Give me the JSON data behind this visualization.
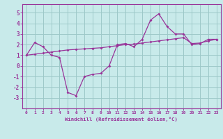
{
  "xlabel": "Windchill (Refroidissement éolien,°C)",
  "bg_color": "#c8eaea",
  "grid_color": "#9dc8c8",
  "line_color": "#993399",
  "xlim": [
    -0.5,
    23.5
  ],
  "ylim": [
    -4,
    5.8
  ],
  "yticks": [
    -3,
    -2,
    -1,
    0,
    1,
    2,
    3,
    4,
    5
  ],
  "xticks": [
    0,
    1,
    2,
    3,
    4,
    5,
    6,
    7,
    8,
    9,
    10,
    11,
    12,
    13,
    14,
    15,
    16,
    17,
    18,
    19,
    20,
    21,
    22,
    23
  ],
  "series1_x": [
    0,
    1,
    2,
    3,
    4,
    5,
    6,
    7,
    8,
    9,
    10,
    11,
    12,
    13,
    14,
    15,
    16,
    17,
    18,
    19,
    20,
    21,
    22,
    23
  ],
  "series1_y": [
    1.0,
    2.2,
    1.8,
    1.0,
    0.8,
    -2.5,
    -2.8,
    -1.0,
    -0.8,
    -0.7,
    0.0,
    2.0,
    2.1,
    1.8,
    2.5,
    4.3,
    4.9,
    3.7,
    3.0,
    3.0,
    2.0,
    2.1,
    2.5,
    2.5
  ],
  "series2_x": [
    0,
    1,
    2,
    3,
    4,
    5,
    6,
    7,
    8,
    9,
    10,
    11,
    12,
    13,
    14,
    15,
    16,
    17,
    18,
    19,
    20,
    21,
    22,
    23
  ],
  "series2_y": [
    1.0,
    1.1,
    1.2,
    1.3,
    1.4,
    1.5,
    1.55,
    1.6,
    1.65,
    1.7,
    1.8,
    1.9,
    2.0,
    2.05,
    2.15,
    2.25,
    2.35,
    2.45,
    2.55,
    2.65,
    2.1,
    2.15,
    2.35,
    2.5
  ]
}
